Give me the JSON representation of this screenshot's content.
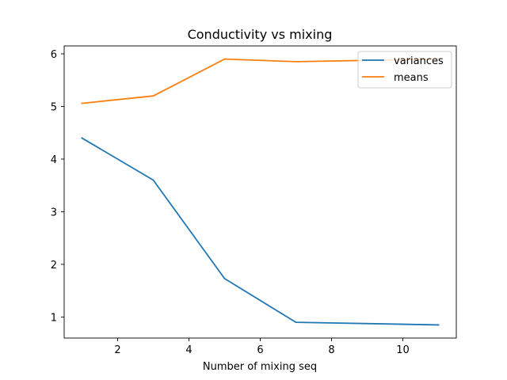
{
  "chart_data": {
    "type": "line",
    "title": "Conductivity vs mixing",
    "xlabel": "Number of mixing seq",
    "ylabel": "",
    "xlim": [
      0.5,
      11.5
    ],
    "ylim": [
      0.6,
      6.15
    ],
    "x_ticks": [
      2,
      4,
      6,
      8,
      10
    ],
    "y_ticks": [
      1,
      2,
      3,
      4,
      5,
      6
    ],
    "grid": false,
    "legend_position": "top-right",
    "series": [
      {
        "name": "variances",
        "color": "#1f77b4",
        "x": [
          1,
          3,
          5,
          7,
          11
        ],
        "y": [
          4.4,
          3.6,
          1.73,
          0.9,
          0.85
        ]
      },
      {
        "name": "means",
        "color": "#ff7f0e",
        "x": [
          1,
          3,
          5,
          7,
          11
        ],
        "y": [
          5.06,
          5.2,
          5.9,
          5.85,
          5.9
        ]
      }
    ]
  }
}
